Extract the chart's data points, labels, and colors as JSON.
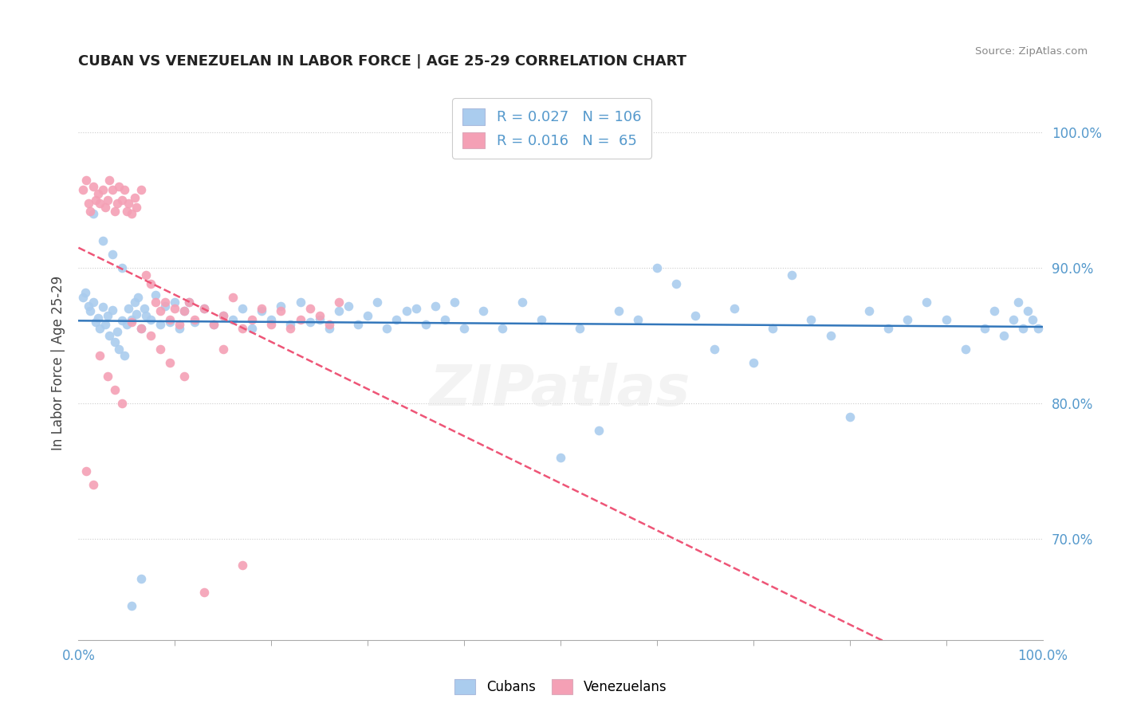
{
  "title": "CUBAN VS VENEZUELAN IN LABOR FORCE | AGE 25-29 CORRELATION CHART",
  "source": "Source: ZipAtlas.com",
  "ylabel": "In Labor Force | Age 25-29",
  "xlim": [
    0.0,
    1.0
  ],
  "ylim": [
    0.625,
    1.035
  ],
  "ytick_vals": [
    0.7,
    0.8,
    0.9,
    1.0
  ],
  "ytick_labels": [
    "70.0%",
    "80.0%",
    "90.0%",
    "100.0%"
  ],
  "xtick_labels": [
    "0.0%",
    "100.0%"
  ],
  "legend_cubans": "Cubans",
  "legend_venezuelans": "Venezuelans",
  "r_cubans": 0.027,
  "n_cubans": 106,
  "r_venezuelans": 0.016,
  "n_venezuelans": 65,
  "cubans_color": "#aaccee",
  "venezuelans_color": "#f4a0b5",
  "trendline_cubans_color": "#3377bb",
  "trendline_venezuelans_color": "#ee5577",
  "background_color": "#ffffff",
  "grid_color": "#cccccc",
  "title_color": "#222222",
  "axis_label_color": "#5599cc",
  "watermark": "ZIPatlas",
  "cubans_x": [
    0.005,
    0.007,
    0.01,
    0.012,
    0.015,
    0.018,
    0.02,
    0.022,
    0.025,
    0.028,
    0.03,
    0.032,
    0.035,
    0.038,
    0.04,
    0.042,
    0.045,
    0.048,
    0.05,
    0.052,
    0.055,
    0.058,
    0.06,
    0.062,
    0.065,
    0.068,
    0.07,
    0.075,
    0.08,
    0.085,
    0.09,
    0.095,
    0.1,
    0.105,
    0.11,
    0.115,
    0.12,
    0.13,
    0.14,
    0.15,
    0.16,
    0.17,
    0.18,
    0.19,
    0.2,
    0.21,
    0.22,
    0.23,
    0.24,
    0.25,
    0.26,
    0.27,
    0.28,
    0.29,
    0.3,
    0.31,
    0.32,
    0.33,
    0.34,
    0.35,
    0.36,
    0.37,
    0.38,
    0.39,
    0.4,
    0.42,
    0.44,
    0.46,
    0.48,
    0.5,
    0.52,
    0.54,
    0.56,
    0.58,
    0.6,
    0.62,
    0.64,
    0.66,
    0.68,
    0.7,
    0.72,
    0.74,
    0.76,
    0.78,
    0.8,
    0.82,
    0.84,
    0.86,
    0.88,
    0.9,
    0.92,
    0.94,
    0.95,
    0.96,
    0.97,
    0.975,
    0.98,
    0.985,
    0.99,
    0.995,
    0.015,
    0.025,
    0.035,
    0.045,
    0.055,
    0.065
  ],
  "cubans_y": [
    0.878,
    0.882,
    0.872,
    0.868,
    0.875,
    0.86,
    0.863,
    0.855,
    0.871,
    0.858,
    0.865,
    0.85,
    0.869,
    0.845,
    0.853,
    0.84,
    0.861,
    0.835,
    0.858,
    0.87,
    0.862,
    0.875,
    0.866,
    0.878,
    0.855,
    0.87,
    0.865,
    0.862,
    0.88,
    0.858,
    0.872,
    0.86,
    0.875,
    0.855,
    0.868,
    0.875,
    0.86,
    0.87,
    0.858,
    0.865,
    0.862,
    0.87,
    0.855,
    0.868,
    0.862,
    0.872,
    0.858,
    0.875,
    0.86,
    0.862,
    0.855,
    0.868,
    0.872,
    0.858,
    0.865,
    0.875,
    0.855,
    0.862,
    0.868,
    0.87,
    0.858,
    0.872,
    0.862,
    0.875,
    0.855,
    0.868,
    0.855,
    0.875,
    0.862,
    0.76,
    0.855,
    0.78,
    0.868,
    0.862,
    0.9,
    0.888,
    0.865,
    0.84,
    0.87,
    0.83,
    0.855,
    0.895,
    0.862,
    0.85,
    0.79,
    0.868,
    0.855,
    0.862,
    0.875,
    0.862,
    0.84,
    0.855,
    0.868,
    0.85,
    0.862,
    0.875,
    0.855,
    0.868,
    0.862,
    0.855,
    0.94,
    0.92,
    0.91,
    0.9,
    0.65,
    0.67
  ],
  "venezuelans_x": [
    0.005,
    0.008,
    0.01,
    0.012,
    0.015,
    0.018,
    0.02,
    0.022,
    0.025,
    0.028,
    0.03,
    0.032,
    0.035,
    0.038,
    0.04,
    0.042,
    0.045,
    0.048,
    0.05,
    0.052,
    0.055,
    0.058,
    0.06,
    0.065,
    0.07,
    0.075,
    0.08,
    0.085,
    0.09,
    0.095,
    0.1,
    0.105,
    0.11,
    0.115,
    0.12,
    0.13,
    0.14,
    0.15,
    0.16,
    0.17,
    0.18,
    0.19,
    0.2,
    0.21,
    0.22,
    0.23,
    0.24,
    0.25,
    0.26,
    0.27,
    0.008,
    0.015,
    0.022,
    0.03,
    0.038,
    0.045,
    0.055,
    0.065,
    0.075,
    0.085,
    0.095,
    0.11,
    0.13,
    0.15,
    0.17
  ],
  "venezuelans_y": [
    0.958,
    0.965,
    0.948,
    0.942,
    0.96,
    0.95,
    0.955,
    0.948,
    0.958,
    0.945,
    0.95,
    0.965,
    0.958,
    0.942,
    0.948,
    0.96,
    0.95,
    0.958,
    0.942,
    0.948,
    0.94,
    0.952,
    0.945,
    0.958,
    0.895,
    0.888,
    0.875,
    0.868,
    0.875,
    0.862,
    0.87,
    0.858,
    0.868,
    0.875,
    0.862,
    0.87,
    0.858,
    0.865,
    0.878,
    0.855,
    0.862,
    0.87,
    0.858,
    0.868,
    0.855,
    0.862,
    0.87,
    0.865,
    0.858,
    0.875,
    0.75,
    0.74,
    0.835,
    0.82,
    0.81,
    0.8,
    0.86,
    0.855,
    0.85,
    0.84,
    0.83,
    0.82,
    0.66,
    0.84,
    0.68
  ]
}
